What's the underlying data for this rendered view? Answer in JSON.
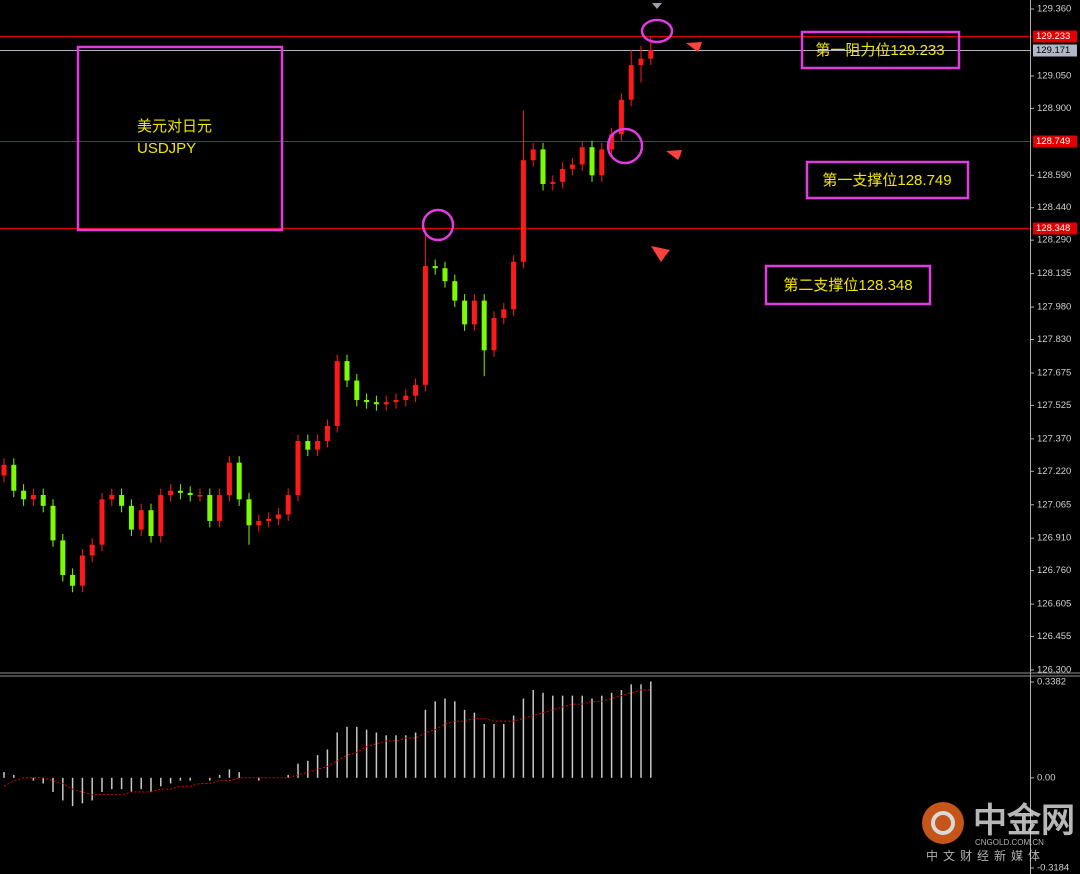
{
  "chart_data": {
    "type": "candlestick",
    "colors": {
      "up": "#ff1a1a",
      "down": "#7cfc00"
    },
    "ohlc": {
      "open": [
        127.2,
        127.25,
        127.13,
        127.09,
        127.11,
        127.06,
        126.9,
        126.74,
        126.69,
        126.83,
        126.88,
        127.09,
        127.11,
        127.06,
        126.95,
        127.04,
        126.92,
        127.11,
        127.13,
        127.12,
        127.11,
        127.11,
        126.99,
        127.11,
        127.26,
        127.09,
        126.97,
        126.99,
        127.0,
        127.02,
        127.11,
        127.36,
        127.32,
        127.36,
        127.43,
        127.73,
        127.64,
        127.55,
        127.54,
        127.53,
        127.54,
        127.55,
        127.57,
        127.62,
        128.17,
        128.16,
        128.1,
        128.01,
        127.9,
        128.01,
        127.78,
        127.93,
        127.97,
        128.19,
        128.66,
        128.71,
        128.55,
        128.56,
        128.62,
        128.64,
        128.72,
        128.59,
        128.71,
        128.78,
        128.94,
        129.1,
        129.13
      ],
      "high": [
        127.28,
        127.28,
        127.16,
        127.14,
        127.14,
        127.09,
        126.93,
        126.77,
        126.86,
        126.91,
        127.12,
        127.14,
        127.14,
        127.09,
        127.07,
        127.07,
        127.14,
        127.16,
        127.16,
        127.15,
        127.14,
        127.14,
        127.14,
        127.29,
        127.29,
        127.12,
        127.02,
        127.03,
        127.05,
        127.14,
        127.39,
        127.39,
        127.39,
        127.46,
        127.76,
        127.76,
        127.67,
        127.58,
        127.57,
        127.57,
        127.58,
        127.6,
        127.65,
        128.34,
        128.2,
        128.19,
        128.13,
        128.04,
        128.04,
        128.04,
        127.96,
        128.0,
        128.22,
        128.89,
        128.74,
        128.74,
        128.59,
        128.65,
        128.67,
        128.75,
        128.75,
        128.74,
        128.81,
        128.97,
        129.17,
        129.19,
        129.23
      ],
      "low": [
        127.17,
        127.1,
        127.06,
        127.06,
        127.03,
        126.87,
        126.71,
        126.66,
        126.66,
        126.8,
        126.85,
        127.06,
        127.03,
        126.92,
        126.92,
        126.89,
        126.89,
        127.08,
        127.09,
        127.08,
        127.08,
        126.96,
        126.96,
        127.08,
        127.06,
        126.88,
        126.94,
        126.96,
        126.97,
        126.99,
        127.08,
        127.29,
        127.29,
        127.33,
        127.4,
        127.61,
        127.52,
        127.51,
        127.5,
        127.5,
        127.51,
        127.52,
        127.54,
        127.59,
        128.13,
        128.07,
        127.98,
        127.87,
        127.87,
        127.66,
        127.75,
        127.9,
        127.94,
        128.16,
        128.63,
        128.52,
        128.52,
        128.53,
        128.59,
        128.61,
        128.56,
        128.56,
        128.68,
        128.75,
        128.91,
        129.02,
        129.1
      ],
      "close": [
        127.25,
        127.13,
        127.09,
        127.11,
        127.06,
        126.9,
        126.74,
        126.69,
        126.83,
        126.88,
        127.09,
        127.11,
        127.06,
        126.95,
        127.04,
        126.92,
        127.11,
        127.13,
        127.12,
        127.11,
        127.11,
        126.99,
        127.11,
        127.26,
        127.09,
        126.97,
        126.99,
        127.0,
        127.02,
        127.11,
        127.36,
        127.32,
        127.36,
        127.43,
        127.73,
        127.64,
        127.55,
        127.54,
        127.53,
        127.54,
        127.55,
        127.57,
        127.62,
        128.17,
        128.16,
        128.1,
        128.01,
        127.9,
        128.01,
        127.78,
        127.93,
        127.97,
        128.19,
        128.66,
        128.71,
        128.55,
        128.56,
        128.62,
        128.64,
        128.72,
        128.59,
        128.71,
        128.78,
        128.94,
        129.1,
        129.13,
        129.17
      ]
    },
    "ylim": [
      126.3,
      129.36
    ],
    "yticks": [
      {
        "value": 129.36,
        "label": "129.360"
      },
      {
        "value": 129.05,
        "label": "129.050"
      },
      {
        "value": 128.9,
        "label": "128.900"
      },
      {
        "value": 128.59,
        "label": "128.590"
      },
      {
        "value": 128.44,
        "label": "128.440"
      },
      {
        "value": 128.29,
        "label": "128.290"
      },
      128.135,
      {
        "value": 127.98,
        "label": "127.980"
      },
      {
        "value": 127.83,
        "label": "127.830"
      },
      127.675,
      127.525,
      {
        "value": 127.37,
        "label": "127.370"
      },
      {
        "value": 127.22,
        "label": "127.220"
      },
      127.065,
      {
        "value": 126.91,
        "label": "126.910"
      },
      {
        "value": 126.76,
        "label": "126.760"
      },
      126.605,
      126.455,
      {
        "value": 126.3,
        "label": "126.300"
      }
    ],
    "levels": [
      {
        "value": 129.233,
        "color": "#e00000",
        "text_color": "#ffffff"
      },
      {
        "value": 129.171,
        "color": "#b0b8c8",
        "text_color": "#000000"
      },
      {
        "value": 128.749,
        "color": "#e00000",
        "text_color": "#ffffff"
      },
      {
        "value": 128.348,
        "color": "#e00000",
        "text_color": "#ffffff"
      }
    ],
    "annotations": {
      "title_cn": "美元对日元",
      "symbol": "USDJPY",
      "resistance1": "第一阻力位129.233",
      "support1": "第一支撑位128.749",
      "support2": "第二支撑位128.348"
    },
    "indicator": {
      "type": "histogram",
      "histogram": [
        0.02,
        0.01,
        0.0,
        -0.01,
        -0.02,
        -0.05,
        -0.08,
        -0.1,
        -0.09,
        -0.08,
        -0.05,
        -0.04,
        -0.04,
        -0.05,
        -0.04,
        -0.05,
        -0.03,
        -0.02,
        -0.01,
        -0.01,
        0.0,
        -0.01,
        0.01,
        0.03,
        0.02,
        0.0,
        -0.01,
        0.0,
        0.0,
        0.01,
        0.05,
        0.06,
        0.08,
        0.1,
        0.16,
        0.18,
        0.18,
        0.17,
        0.16,
        0.15,
        0.15,
        0.15,
        0.16,
        0.24,
        0.27,
        0.28,
        0.27,
        0.24,
        0.23,
        0.19,
        0.19,
        0.19,
        0.22,
        0.28,
        0.31,
        0.3,
        0.29,
        0.29,
        0.29,
        0.29,
        0.28,
        0.29,
        0.3,
        0.31,
        0.33,
        0.33,
        0.34
      ],
      "signal": [
        -0.03,
        -0.01,
        0.0,
        0.0,
        0.0,
        -0.01,
        -0.02,
        -0.04,
        -0.05,
        -0.06,
        -0.06,
        -0.06,
        -0.06,
        -0.05,
        -0.05,
        -0.05,
        -0.04,
        -0.04,
        -0.03,
        -0.03,
        -0.02,
        -0.02,
        -0.01,
        -0.01,
        0.0,
        0.0,
        0.0,
        0.0,
        0.0,
        0.0,
        0.01,
        0.02,
        0.03,
        0.04,
        0.06,
        0.08,
        0.09,
        0.11,
        0.12,
        0.13,
        0.13,
        0.14,
        0.14,
        0.16,
        0.17,
        0.19,
        0.2,
        0.2,
        0.21,
        0.21,
        0.2,
        0.2,
        0.2,
        0.21,
        0.22,
        0.23,
        0.24,
        0.25,
        0.26,
        0.26,
        0.27,
        0.27,
        0.28,
        0.29,
        0.3,
        0.31,
        0.31
      ],
      "histogram_color": "#c8c8c8",
      "signal_color": "#e00000",
      "ylim": [
        -0.3184,
        0.3382
      ],
      "yticks": [
        0.3382,
        {
          "value": 0,
          "label": "0.00"
        },
        -0.3184
      ]
    },
    "watermark": {
      "brand": "中金网",
      "domain": "CNGOLD.COM.CN",
      "slogan": "中文财经新媒体"
    }
  }
}
